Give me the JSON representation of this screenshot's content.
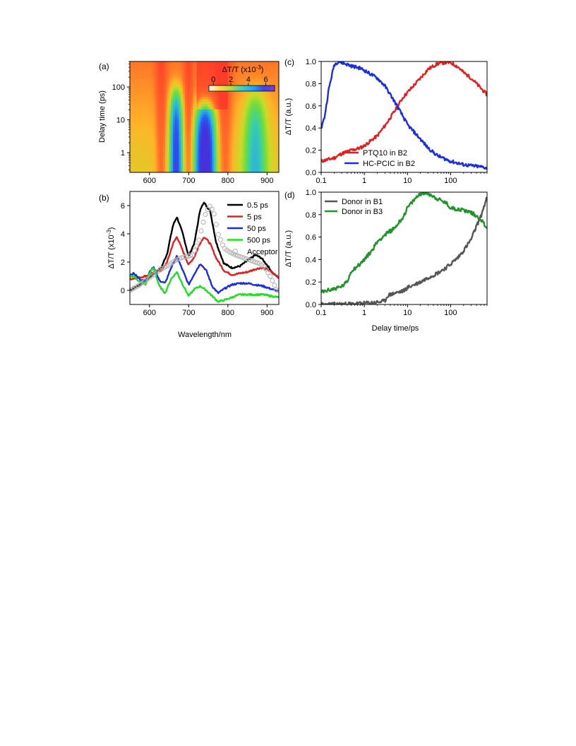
{
  "chart_data": [
    {
      "panel": "(a)",
      "type": "heatmap",
      "xlabel": "",
      "ylabel": "Delay time (ps)",
      "xlim": [
        550,
        930
      ],
      "ylim": [
        0.25,
        600
      ],
      "yscale": "log",
      "xticks": [
        600,
        700,
        800,
        900
      ],
      "yticks": [
        1,
        10,
        100
      ],
      "colorbar": {
        "label": "ΔT/T (x10",
        "label_exp": "-3",
        "label_close": ")",
        "ticks": [
          0,
          2,
          4,
          6
        ],
        "range": [
          -0.5,
          7
        ],
        "colors": [
          "#ffffff",
          "#ffd84a",
          "#a8e040",
          "#3ad0c8",
          "#1aa8ff",
          "#3b47e8",
          "#7a3fd8"
        ]
      },
      "peaks": [
        {
          "wavelength": 668,
          "max": 4.4,
          "width": 15,
          "decay_ps": 70
        },
        {
          "wavelength": 742,
          "max": 6.4,
          "width": 23,
          "decay_ps": 25
        },
        {
          "wavelength": 870,
          "max": 2.4,
          "width": 28,
          "decay_ps": 60
        }
      ],
      "late_red_band": {
        "from": 720,
        "to": 800,
        "from_ps": 20
      }
    },
    {
      "panel": "(b)",
      "type": "line",
      "xlabel": "Wavelength/nm",
      "ylabel": "ΔT/T (x10",
      "ylabel_exp": "-3",
      "ylabel_close": ")",
      "xlim": [
        550,
        930
      ],
      "ylim": [
        -1,
        7
      ],
      "xticks": [
        600,
        700,
        800,
        900
      ],
      "yticks": [
        0,
        2,
        4,
        6
      ],
      "legend": "top-right",
      "series": [
        {
          "name": "0.5 ps",
          "color": "#000000",
          "x": [
            550,
            575,
            600,
            615,
            630,
            645,
            660,
            670,
            685,
            700,
            715,
            730,
            740,
            755,
            770,
            790,
            810,
            830,
            850,
            870,
            885,
            900,
            915,
            930
          ],
          "y": [
            0.0,
            0.4,
            0.9,
            1.3,
            1.6,
            2.6,
            4.6,
            5.2,
            4.0,
            2.4,
            3.4,
            5.8,
            6.2,
            5.6,
            3.4,
            1.9,
            1.6,
            1.7,
            2.1,
            2.5,
            2.3,
            1.8,
            1.2,
            0.9
          ]
        },
        {
          "name": "5 ps",
          "color": "#e02020",
          "x": [
            550,
            575,
            600,
            615,
            630,
            645,
            660,
            670,
            685,
            700,
            715,
            730,
            740,
            755,
            770,
            790,
            810,
            830,
            850,
            870,
            885,
            900,
            915,
            930
          ],
          "y": [
            0.8,
            0.9,
            1.1,
            1.3,
            1.4,
            2.0,
            3.3,
            3.8,
            2.8,
            1.8,
            2.4,
            3.4,
            3.8,
            3.3,
            2.3,
            1.4,
            1.1,
            1.2,
            1.3,
            1.5,
            1.6,
            1.5,
            1.2,
            0.9
          ]
        },
        {
          "name": "50 ps",
          "color": "#1a2ee0",
          "x": [
            550,
            560,
            575,
            590,
            600,
            610,
            625,
            640,
            655,
            670,
            685,
            700,
            715,
            730,
            745,
            760,
            775,
            790,
            810,
            830,
            850,
            870,
            890,
            910,
            930
          ],
          "y": [
            1.1,
            1.2,
            0.8,
            0.6,
            1.3,
            1.7,
            0.7,
            0.5,
            1.6,
            2.4,
            1.4,
            0.4,
            1.2,
            1.9,
            1.4,
            0.3,
            -0.2,
            0.1,
            0.4,
            0.5,
            0.5,
            0.4,
            0.3,
            0.1,
            -0.1
          ]
        },
        {
          "name": "500 ps",
          "color": "#22dd22",
          "x": [
            550,
            560,
            575,
            590,
            600,
            610,
            625,
            640,
            655,
            670,
            685,
            700,
            715,
            730,
            745,
            760,
            775,
            790,
            810,
            830,
            850,
            870,
            890,
            910,
            930
          ],
          "y": [
            1.0,
            1.0,
            0.6,
            0.4,
            1.2,
            1.6,
            0.3,
            -0.2,
            0.8,
            1.3,
            0.4,
            -0.4,
            0.1,
            0.3,
            0.0,
            -0.4,
            -0.8,
            -0.7,
            -0.5,
            -0.3,
            -0.3,
            -0.3,
            -0.3,
            -0.4,
            -0.5
          ]
        },
        {
          "name": "Acceptor",
          "color": "#b0b0b0",
          "marker": "circle",
          "x": [
            550,
            570,
            590,
            610,
            630,
            650,
            665,
            680,
            695,
            710,
            725,
            735,
            745,
            755,
            765,
            775,
            790,
            805,
            820,
            840,
            860,
            880,
            895,
            910,
            925
          ],
          "y": [
            0.0,
            0.3,
            0.7,
            1.1,
            1.5,
            1.8,
            2.1,
            2.3,
            2.4,
            2.5,
            3.4,
            4.6,
            5.6,
            6.0,
            5.4,
            4.0,
            3.0,
            2.7,
            2.5,
            2.3,
            2.1,
            1.9,
            1.6,
            0.9,
            0.0
          ]
        }
      ]
    },
    {
      "panel": "(c)",
      "type": "line",
      "xlabel": "",
      "ylabel": "ΔT/T (a.u.)",
      "xscale": "log",
      "xlim": [
        0.1,
        700
      ],
      "ylim": [
        0,
        1
      ],
      "xticks": [
        0.1,
        1,
        10,
        100
      ],
      "yticks": [
        0.0,
        0.2,
        0.4,
        0.6,
        0.8,
        1.0
      ],
      "legend": "bottom-center",
      "series": [
        {
          "name": "PTQ10 in B2",
          "color": "#e02020",
          "x": [
            0.1,
            0.2,
            0.3,
            0.5,
            0.8,
            1,
            2,
            3,
            5,
            8,
            10,
            20,
            30,
            50,
            70,
            100,
            150,
            200,
            300,
            500,
            700
          ],
          "y": [
            0.1,
            0.13,
            0.17,
            0.2,
            0.22,
            0.24,
            0.33,
            0.42,
            0.55,
            0.68,
            0.72,
            0.85,
            0.93,
            0.98,
            0.99,
            0.99,
            0.95,
            0.9,
            0.85,
            0.76,
            0.7
          ]
        },
        {
          "name": "HC-PCIC in B2",
          "color": "#1a2ee0",
          "x": [
            0.1,
            0.12,
            0.15,
            0.2,
            0.25,
            0.3,
            0.5,
            0.8,
            1,
            2,
            3,
            5,
            8,
            10,
            20,
            30,
            50,
            100,
            200,
            300,
            500,
            700
          ],
          "y": [
            0.4,
            0.5,
            0.75,
            0.97,
            1.0,
            0.99,
            0.96,
            0.94,
            0.92,
            0.85,
            0.78,
            0.64,
            0.5,
            0.43,
            0.3,
            0.22,
            0.15,
            0.1,
            0.07,
            0.06,
            0.05,
            0.04
          ]
        }
      ]
    },
    {
      "panel": "(d)",
      "type": "line",
      "xlabel": "Delay time/ps",
      "ylabel": "ΔT/T (a.u.)",
      "xscale": "log",
      "xlim": [
        0.1,
        700
      ],
      "ylim": [
        0,
        1
      ],
      "xticks": [
        0.1,
        1,
        10,
        100
      ],
      "yticks": [
        0.0,
        0.2,
        0.4,
        0.6,
        0.8,
        1.0
      ],
      "legend": "top-left",
      "series": [
        {
          "name": "Donor in B1",
          "color": "#555555",
          "x": [
            0.1,
            0.5,
            1,
            2,
            3,
            3.5,
            5,
            8,
            10,
            20,
            30,
            50,
            80,
            100,
            150,
            200,
            300,
            400,
            500,
            600,
            700
          ],
          "y": [
            0.0,
            0.005,
            0.01,
            0.02,
            0.03,
            0.08,
            0.1,
            0.12,
            0.15,
            0.2,
            0.24,
            0.28,
            0.33,
            0.36,
            0.42,
            0.48,
            0.58,
            0.7,
            0.78,
            0.88,
            0.95
          ]
        },
        {
          "name": "Donor in B3",
          "color": "#22922a",
          "x": [
            0.1,
            0.2,
            0.3,
            0.4,
            0.5,
            0.8,
            1,
            1.5,
            2,
            3,
            5,
            8,
            10,
            15,
            20,
            30,
            50,
            80,
            100,
            200,
            300,
            500,
            700
          ],
          "y": [
            0.11,
            0.14,
            0.16,
            0.2,
            0.3,
            0.36,
            0.4,
            0.48,
            0.56,
            0.62,
            0.68,
            0.78,
            0.86,
            0.94,
            0.99,
            0.99,
            0.94,
            0.9,
            0.86,
            0.84,
            0.82,
            0.76,
            0.68
          ]
        }
      ]
    }
  ]
}
